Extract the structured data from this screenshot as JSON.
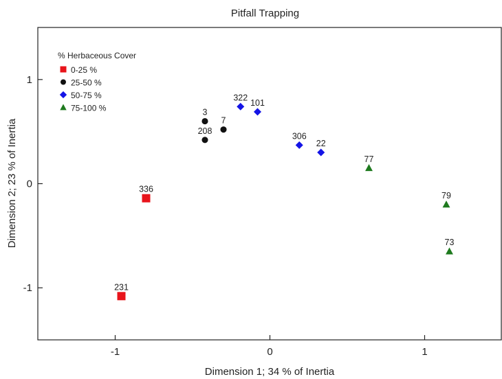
{
  "chart_data": {
    "type": "scatter",
    "title": "Pitfall Trapping",
    "xlabel": "Dimension 1; 34 % of Inertia",
    "ylabel": "Dimension 2; 23 % of Inertia",
    "xlim": [
      -1.5,
      1.5
    ],
    "ylim": [
      -1.5,
      1.5
    ],
    "x_ticks": [
      -1,
      0,
      1
    ],
    "y_ticks": [
      1,
      0,
      -1
    ],
    "x_tick_labels": [
      "-1",
      "0",
      "1"
    ],
    "y_tick_labels": [
      "1",
      "0",
      "-1"
    ],
    "grid": false,
    "legend": {
      "title": "% Herbaceous Cover",
      "placement": "top-left"
    },
    "series": [
      {
        "name": "0-25 %",
        "marker": "square",
        "color": "#e8141b",
        "points": [
          {
            "label": "336",
            "x": -0.8,
            "y": -0.14
          },
          {
            "label": "231",
            "x": -0.96,
            "y": -1.08
          }
        ]
      },
      {
        "name": "25-50 %",
        "marker": "circle",
        "color": "#111111",
        "points": [
          {
            "label": "3",
            "x": -0.42,
            "y": 0.6
          },
          {
            "label": "208",
            "x": -0.42,
            "y": 0.42
          },
          {
            "label": "7",
            "x": -0.3,
            "y": 0.52
          }
        ]
      },
      {
        "name": "50-75 %",
        "marker": "diamond",
        "color": "#1414e6",
        "points": [
          {
            "label": "322",
            "x": -0.19,
            "y": 0.74
          },
          {
            "label": "101",
            "x": -0.08,
            "y": 0.69
          },
          {
            "label": "306",
            "x": 0.19,
            "y": 0.37
          },
          {
            "label": "22",
            "x": 0.33,
            "y": 0.3
          }
        ]
      },
      {
        "name": "75-100 %",
        "marker": "triangle",
        "color": "#1e7a1e",
        "points": [
          {
            "label": "77",
            "x": 0.64,
            "y": 0.15
          },
          {
            "label": "79",
            "x": 1.14,
            "y": -0.2
          },
          {
            "label": "73",
            "x": 1.16,
            "y": -0.65
          }
        ]
      }
    ]
  }
}
